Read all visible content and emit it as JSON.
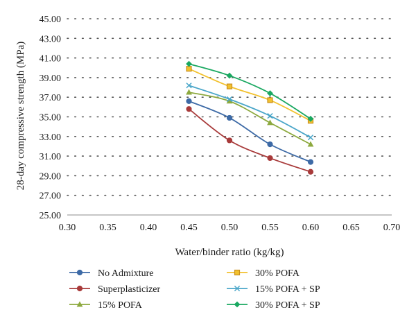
{
  "chart_data": {
    "type": "line",
    "xlabel": "Water/binder ratio (kg/kg)",
    "ylabel": "28-day compressive strength (MPa)",
    "xlim": [
      0.3,
      0.7
    ],
    "ylim": [
      25.0,
      45.0
    ],
    "x_ticks": [
      "0.30",
      "0.35",
      "0.40",
      "0.45",
      "0.50",
      "0.55",
      "0.60",
      "0.65",
      "0.70"
    ],
    "y_ticks": [
      "25.00",
      "27.00",
      "29.00",
      "31.00",
      "33.00",
      "35.00",
      "37.00",
      "39.00",
      "41.00",
      "43.00",
      "45.00"
    ],
    "grid": "horizontal-dotted",
    "legend_position": "bottom",
    "x": [
      0.45,
      0.5,
      0.55,
      0.6
    ],
    "series": [
      {
        "name": "No Admixture",
        "values": [
          36.6,
          34.9,
          32.2,
          30.4
        ],
        "color": "#3d6aa6",
        "marker": "circle"
      },
      {
        "name": "Superplasticizer",
        "values": [
          35.8,
          32.6,
          30.8,
          29.4
        ],
        "color": "#a83a3a",
        "marker": "circle"
      },
      {
        "name": "15% POFA",
        "values": [
          37.5,
          36.6,
          34.4,
          32.2
        ],
        "color": "#8da93e",
        "marker": "triangle"
      },
      {
        "name": "30% POFA",
        "values": [
          39.9,
          38.1,
          36.7,
          34.6
        ],
        "color": "#f2c12e",
        "marker": "square"
      },
      {
        "name": "15% POFA + SP",
        "values": [
          38.2,
          36.8,
          35.1,
          32.9
        ],
        "color": "#4aa6c9",
        "marker": "x"
      },
      {
        "name": "30% POFA + SP",
        "values": [
          40.4,
          39.2,
          37.4,
          34.8
        ],
        "color": "#1aa861",
        "marker": "diamond"
      }
    ]
  }
}
